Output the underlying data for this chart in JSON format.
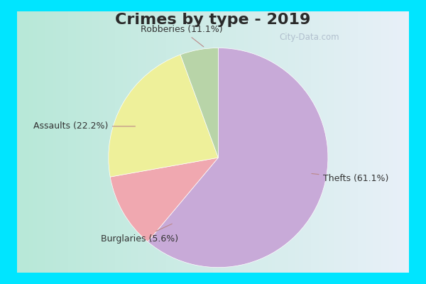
{
  "title": "Crimes by type - 2019",
  "slices": [
    {
      "label": "Thefts (61.1%)",
      "value": 61.1,
      "color": "#c8aad8"
    },
    {
      "label": "Robberies (11.1%)",
      "value": 11.1,
      "color": "#f0a8b0"
    },
    {
      "label": "Assaults (22.2%)",
      "value": 22.2,
      "color": "#eef09a"
    },
    {
      "label": "Burglaries (5.6%)",
      "value": 5.6,
      "color": "#b8d4a8"
    }
  ],
  "startangle": 90,
  "outer_bg": "#00e5ff",
  "inner_bg_left": "#b8e8d8",
  "inner_bg_right": "#e8f0f8",
  "title_fontsize": 16,
  "label_fontsize": 9,
  "watermark": "ⓘ City-Data.com",
  "border_thickness": 8
}
